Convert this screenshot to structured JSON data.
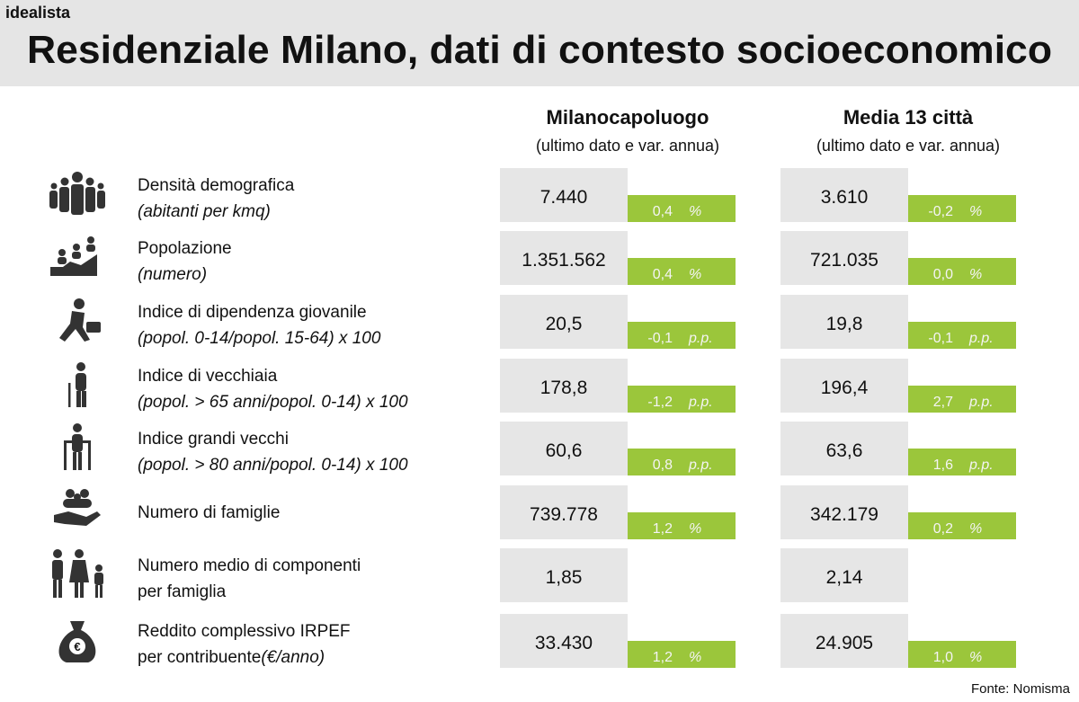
{
  "brand": "idealista",
  "title": "Residenziale Milano, dati di contesto socioeconomico",
  "columns": [
    {
      "title": "Milanocapoluogo",
      "subtitle": "(ultimo dato e var. annua)"
    },
    {
      "title": "Media 13 città",
      "subtitle": "(ultimo dato e var. annua)"
    }
  ],
  "rows": [
    {
      "label": "Densità demografica",
      "detail": "(abitanti per kmq)",
      "cells": [
        {
          "value": "7.440",
          "change": "0,4",
          "unit": "%"
        },
        {
          "value": "3.610",
          "change": "-0,2",
          "unit": "%"
        }
      ]
    },
    {
      "label": "Popolazione",
      "detail": "(numero)",
      "cells": [
        {
          "value": "1.351.562",
          "change": "0,4",
          "unit": "%"
        },
        {
          "value": "721.035",
          "change": "0,0",
          "unit": "%"
        }
      ]
    },
    {
      "label": "Indice di dipendenza giovanile",
      "detail": "(popol. 0-14/popol. 15-64) x 100",
      "cells": [
        {
          "value": "20,5",
          "change": "-0,1",
          "unit": "p.p."
        },
        {
          "value": "19,8",
          "change": "-0,1",
          "unit": "p.p."
        }
      ]
    },
    {
      "label": "Indice di vecchiaia",
      "detail": "(popol. > 65 anni/popol. 0-14) x 100",
      "cells": [
        {
          "value": "178,8",
          "change": "-1,2",
          "unit": "p.p."
        },
        {
          "value": "196,4",
          "change": "2,7",
          "unit": "p.p."
        }
      ]
    },
    {
      "label": "Indice grandi vecchi",
      "detail": "(popol. > 80 anni/popol. 0-14) x 100",
      "cells": [
        {
          "value": "60,6",
          "change": "0,8",
          "unit": "p.p."
        },
        {
          "value": "63,6",
          "change": "1,6",
          "unit": "p.p."
        }
      ]
    },
    {
      "label": "Numero di famiglie",
      "cells": [
        {
          "value": "739.778",
          "change": "1,2",
          "unit": "%"
        },
        {
          "value": "342.179",
          "change": "0,2",
          "unit": "%"
        }
      ]
    },
    {
      "label": "Numero medio di componenti",
      "label2": "per famiglia",
      "cells": [
        {
          "value": "1,85"
        },
        {
          "value": "2,14"
        }
      ]
    },
    {
      "label": "Reddito complessivo IRPEF",
      "label2": "per contribuente",
      "detail": "(€/anno)",
      "cells": [
        {
          "value": "33.430",
          "change": "1,2",
          "unit": "%"
        },
        {
          "value": "24.905",
          "change": "1,0",
          "unit": "%"
        }
      ]
    }
  ],
  "source": "Fonte: Nomisma"
}
